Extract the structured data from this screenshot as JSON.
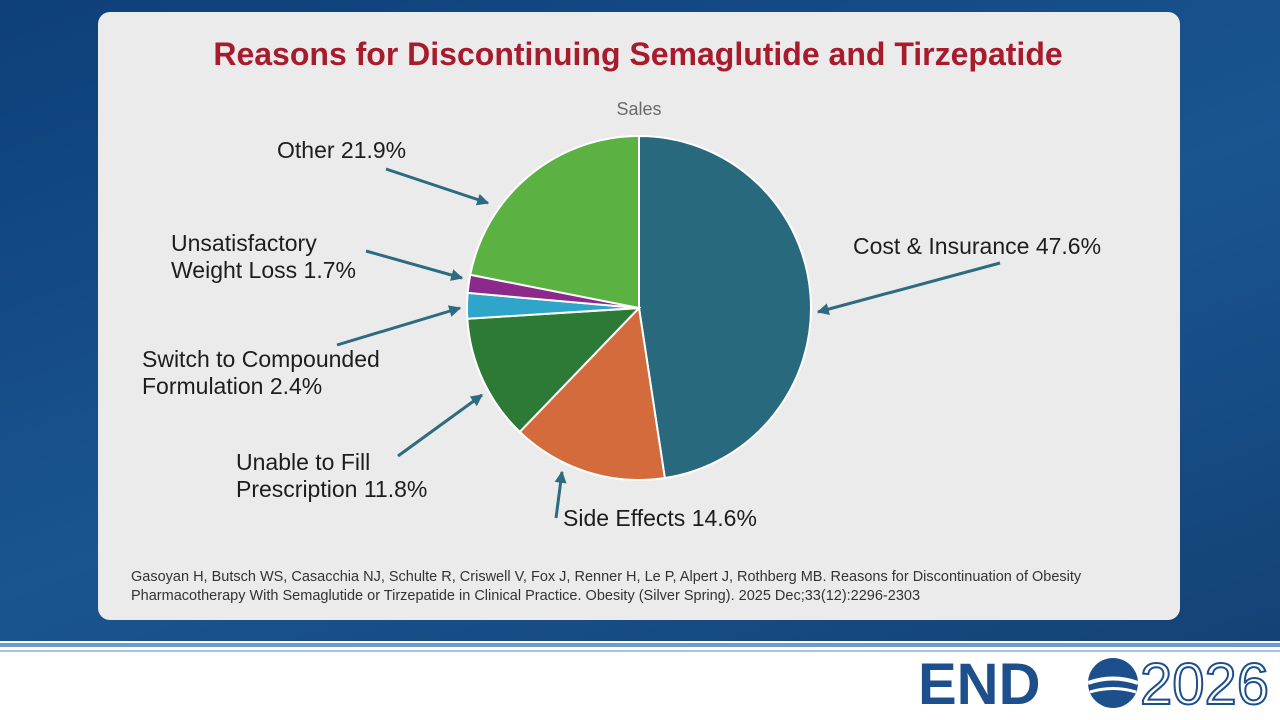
{
  "chart_data": {
    "type": "pie",
    "title": "Reasons for Discontinuing Semaglutide and Tirzepatide",
    "subtitle": "Sales",
    "categories": [
      "Cost & Insurance",
      "Side Effects",
      "Unable to Fill Prescription",
      "Switch to Compounded Formulation",
      "Unsatisfactory Weight Loss",
      "Other"
    ],
    "values": [
      47.6,
      14.6,
      11.8,
      2.4,
      1.7,
      21.9
    ],
    "value_labels": [
      "47.6%",
      "14.6%",
      "11.8%",
      "2.4%",
      "1.7%",
      "21.9%"
    ],
    "colors": [
      "#29697d",
      "#d46b3c",
      "#2c7a35",
      "#2fa6c9",
      "#8c2a8c",
      "#5bb242"
    ]
  },
  "citation": "Gasoyan H, Butsch WS, Casacchia NJ, Schulte R, Criswell V, Fox J, Renner H, Le P, Alpert J, Rothberg MB. Reasons for Discontinuation of Obesity Pharmacotherapy With Semaglutide or Tirzepatide in Clinical Practice. Obesity (Silver Spring). 2025 Dec;33(12):2296-2303",
  "logo": {
    "left": "END",
    "right": "2026"
  }
}
